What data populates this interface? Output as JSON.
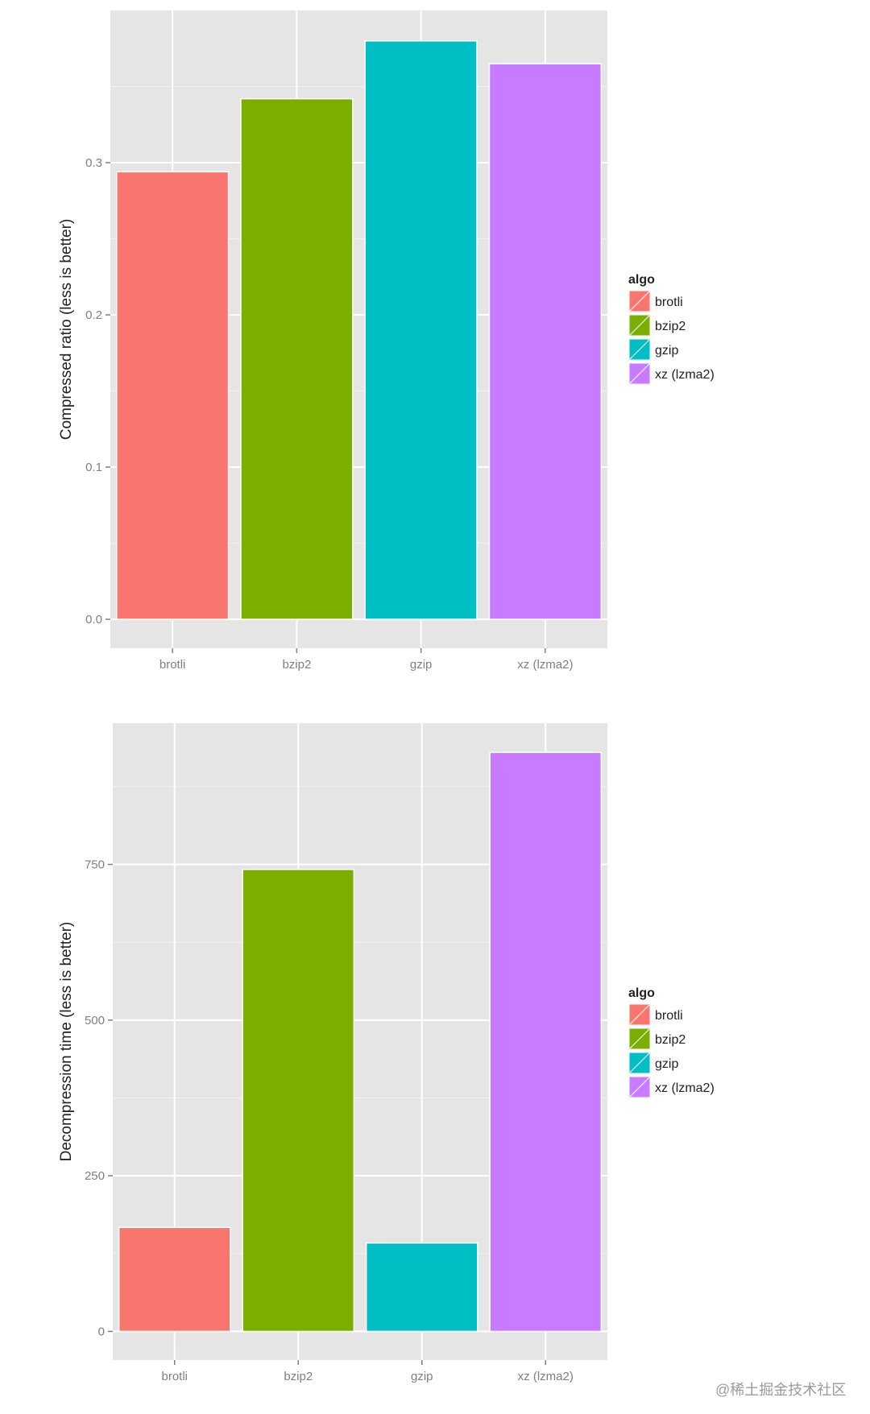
{
  "chart_data": [
    {
      "type": "bar",
      "categories": [
        "brotli",
        "bzip2",
        "gzip",
        "xz (lzma2)"
      ],
      "values": [
        0.294,
        0.342,
        0.38,
        0.365
      ],
      "ylabel": "Compressed ratio (less is better)",
      "xlabel": "",
      "ylim": [
        -0.019,
        0.4
      ],
      "yticks": [
        0.0,
        0.1,
        0.2,
        0.3
      ],
      "ytick_labels": [
        "0.0",
        "0.1",
        "0.2",
        "0.3"
      ],
      "legend": {
        "title": "algo",
        "entries": [
          "brotli",
          "bzip2",
          "gzip",
          "xz (lzma2)"
        ],
        "position": "right"
      }
    },
    {
      "type": "bar",
      "categories": [
        "brotli",
        "bzip2",
        "gzip",
        "xz (lzma2)"
      ],
      "values": [
        167,
        742,
        142,
        930
      ],
      "ylabel": "Decompression time (less is better)",
      "xlabel": "",
      "ylim": [
        -46,
        977
      ],
      "yticks": [
        0,
        250,
        500,
        750
      ],
      "ytick_labels": [
        "0",
        "250",
        "500",
        "750"
      ],
      "legend": {
        "title": "algo",
        "entries": [
          "brotli",
          "bzip2",
          "gzip",
          "xz (lzma2)"
        ],
        "position": "right"
      }
    }
  ],
  "colors": {
    "brotli": "#f8766d",
    "bzip2": "#7cae00",
    "gzip": "#00bfc4",
    "xz (lzma2)": "#c77cff",
    "panel_background": "#e5e5e5",
    "grid": "#ffffff"
  },
  "watermark": "@稀土掘金技术社区"
}
